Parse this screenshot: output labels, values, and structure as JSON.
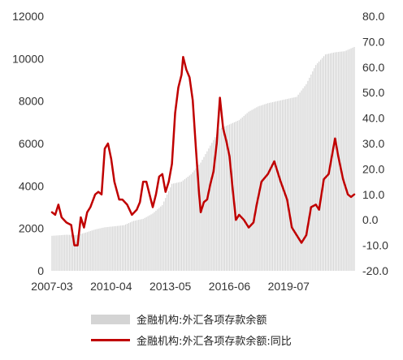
{
  "chart_data": {
    "type": "bar+line",
    "title": "",
    "x_tick_labels": [
      "2007-03",
      "2010-04",
      "2013-05",
      "2016-06",
      "2019-07"
    ],
    "y_left": {
      "ylim": [
        0,
        12000
      ],
      "ticks": [
        "0",
        "2000",
        "4000",
        "6000",
        "8000",
        "10000",
        "12000"
      ]
    },
    "y_right": {
      "ylim": [
        -20,
        80
      ],
      "ticks": [
        "-20.0",
        "-10.0",
        "0.0",
        "10.0",
        "20.0",
        "30.0",
        "40.0",
        "50.0",
        "60.0",
        "70.0",
        "80.0"
      ]
    },
    "x_range": [
      "2007-03",
      "2022-12"
    ],
    "grid": false,
    "legend_position": "bottom",
    "series": [
      {
        "name": "金融机构:外汇各项存款余额",
        "kind": "bar",
        "axis": "left",
        "color": "#d4d4d4",
        "points": [
          [
            "2007-03",
            1650
          ],
          [
            "2007-12",
            1700
          ],
          [
            "2008-06",
            1680
          ],
          [
            "2008-12",
            1800
          ],
          [
            "2009-06",
            1950
          ],
          [
            "2009-12",
            2050
          ],
          [
            "2010-06",
            2100
          ],
          [
            "2010-12",
            2150
          ],
          [
            "2011-06",
            2350
          ],
          [
            "2011-12",
            2450
          ],
          [
            "2012-06",
            2700
          ],
          [
            "2012-12",
            3100
          ],
          [
            "2013-06",
            4100
          ],
          [
            "2013-12",
            4200
          ],
          [
            "2014-06",
            4550
          ],
          [
            "2014-12",
            5100
          ],
          [
            "2015-06",
            5900
          ],
          [
            "2015-12",
            6700
          ],
          [
            "2016-06",
            6900
          ],
          [
            "2016-12",
            7100
          ],
          [
            "2017-06",
            7500
          ],
          [
            "2017-12",
            7750
          ],
          [
            "2018-06",
            7900
          ],
          [
            "2018-12",
            8000
          ],
          [
            "2019-06",
            8100
          ],
          [
            "2019-12",
            8200
          ],
          [
            "2020-06",
            8800
          ],
          [
            "2020-12",
            9700
          ],
          [
            "2021-06",
            10200
          ],
          [
            "2021-12",
            10300
          ],
          [
            "2022-06",
            10350
          ],
          [
            "2022-12",
            10550
          ]
        ]
      },
      {
        "name": "金融机构:外汇各项存款余额:同比",
        "kind": "line",
        "axis": "right",
        "color": "#c00000",
        "points": [
          [
            "2007-03",
            3
          ],
          [
            "2007-05",
            2
          ],
          [
            "2007-07",
            6
          ],
          [
            "2007-09",
            1
          ],
          [
            "2007-12",
            -1
          ],
          [
            "2008-03",
            -2
          ],
          [
            "2008-05",
            -10
          ],
          [
            "2008-07",
            -10
          ],
          [
            "2008-09",
            1
          ],
          [
            "2008-11",
            -3
          ],
          [
            "2009-01",
            3
          ],
          [
            "2009-03",
            5
          ],
          [
            "2009-06",
            10
          ],
          [
            "2009-08",
            11
          ],
          [
            "2009-10",
            10
          ],
          [
            "2009-12",
            28
          ],
          [
            "2010-02",
            30
          ],
          [
            "2010-04",
            24
          ],
          [
            "2010-06",
            15
          ],
          [
            "2010-09",
            8
          ],
          [
            "2010-11",
            8
          ],
          [
            "2011-02",
            6
          ],
          [
            "2011-05",
            2
          ],
          [
            "2011-08",
            4
          ],
          [
            "2011-10",
            7
          ],
          [
            "2011-12",
            15
          ],
          [
            "2012-02",
            15
          ],
          [
            "2012-04",
            10
          ],
          [
            "2012-06",
            5
          ],
          [
            "2012-08",
            10
          ],
          [
            "2012-10",
            17
          ],
          [
            "2012-12",
            18
          ],
          [
            "2013-02",
            11
          ],
          [
            "2013-04",
            15
          ],
          [
            "2013-06",
            22
          ],
          [
            "2013-08",
            42
          ],
          [
            "2013-10",
            52
          ],
          [
            "2013-12",
            57
          ],
          [
            "2014-01",
            64
          ],
          [
            "2014-03",
            59
          ],
          [
            "2014-05",
            56
          ],
          [
            "2014-07",
            47
          ],
          [
            "2014-09",
            28
          ],
          [
            "2014-11",
            10
          ],
          [
            "2014-12",
            3
          ],
          [
            "2015-02",
            7
          ],
          [
            "2015-04",
            8
          ],
          [
            "2015-06",
            14
          ],
          [
            "2015-08",
            19
          ],
          [
            "2015-10",
            30
          ],
          [
            "2015-12",
            48
          ],
          [
            "2016-02",
            36
          ],
          [
            "2016-04",
            31
          ],
          [
            "2016-06",
            25
          ],
          [
            "2016-08",
            12
          ],
          [
            "2016-10",
            0
          ],
          [
            "2016-12",
            2
          ],
          [
            "2017-03",
            0
          ],
          [
            "2017-06",
            -3
          ],
          [
            "2017-09",
            -1
          ],
          [
            "2017-11",
            6
          ],
          [
            "2018-02",
            15
          ],
          [
            "2018-06",
            18
          ],
          [
            "2018-10",
            23
          ],
          [
            "2019-02",
            15
          ],
          [
            "2019-06",
            8
          ],
          [
            "2019-09",
            -3
          ],
          [
            "2019-12",
            -6
          ],
          [
            "2020-03",
            -9
          ],
          [
            "2020-06",
            -6
          ],
          [
            "2020-09",
            5
          ],
          [
            "2020-12",
            6
          ],
          [
            "2021-02",
            4
          ],
          [
            "2021-05",
            16
          ],
          [
            "2021-08",
            18
          ],
          [
            "2021-10",
            25
          ],
          [
            "2021-12",
            32
          ],
          [
            "2022-02",
            25
          ],
          [
            "2022-05",
            16
          ],
          [
            "2022-08",
            10
          ],
          [
            "2022-10",
            9
          ],
          [
            "2022-12",
            10
          ]
        ]
      }
    ]
  }
}
